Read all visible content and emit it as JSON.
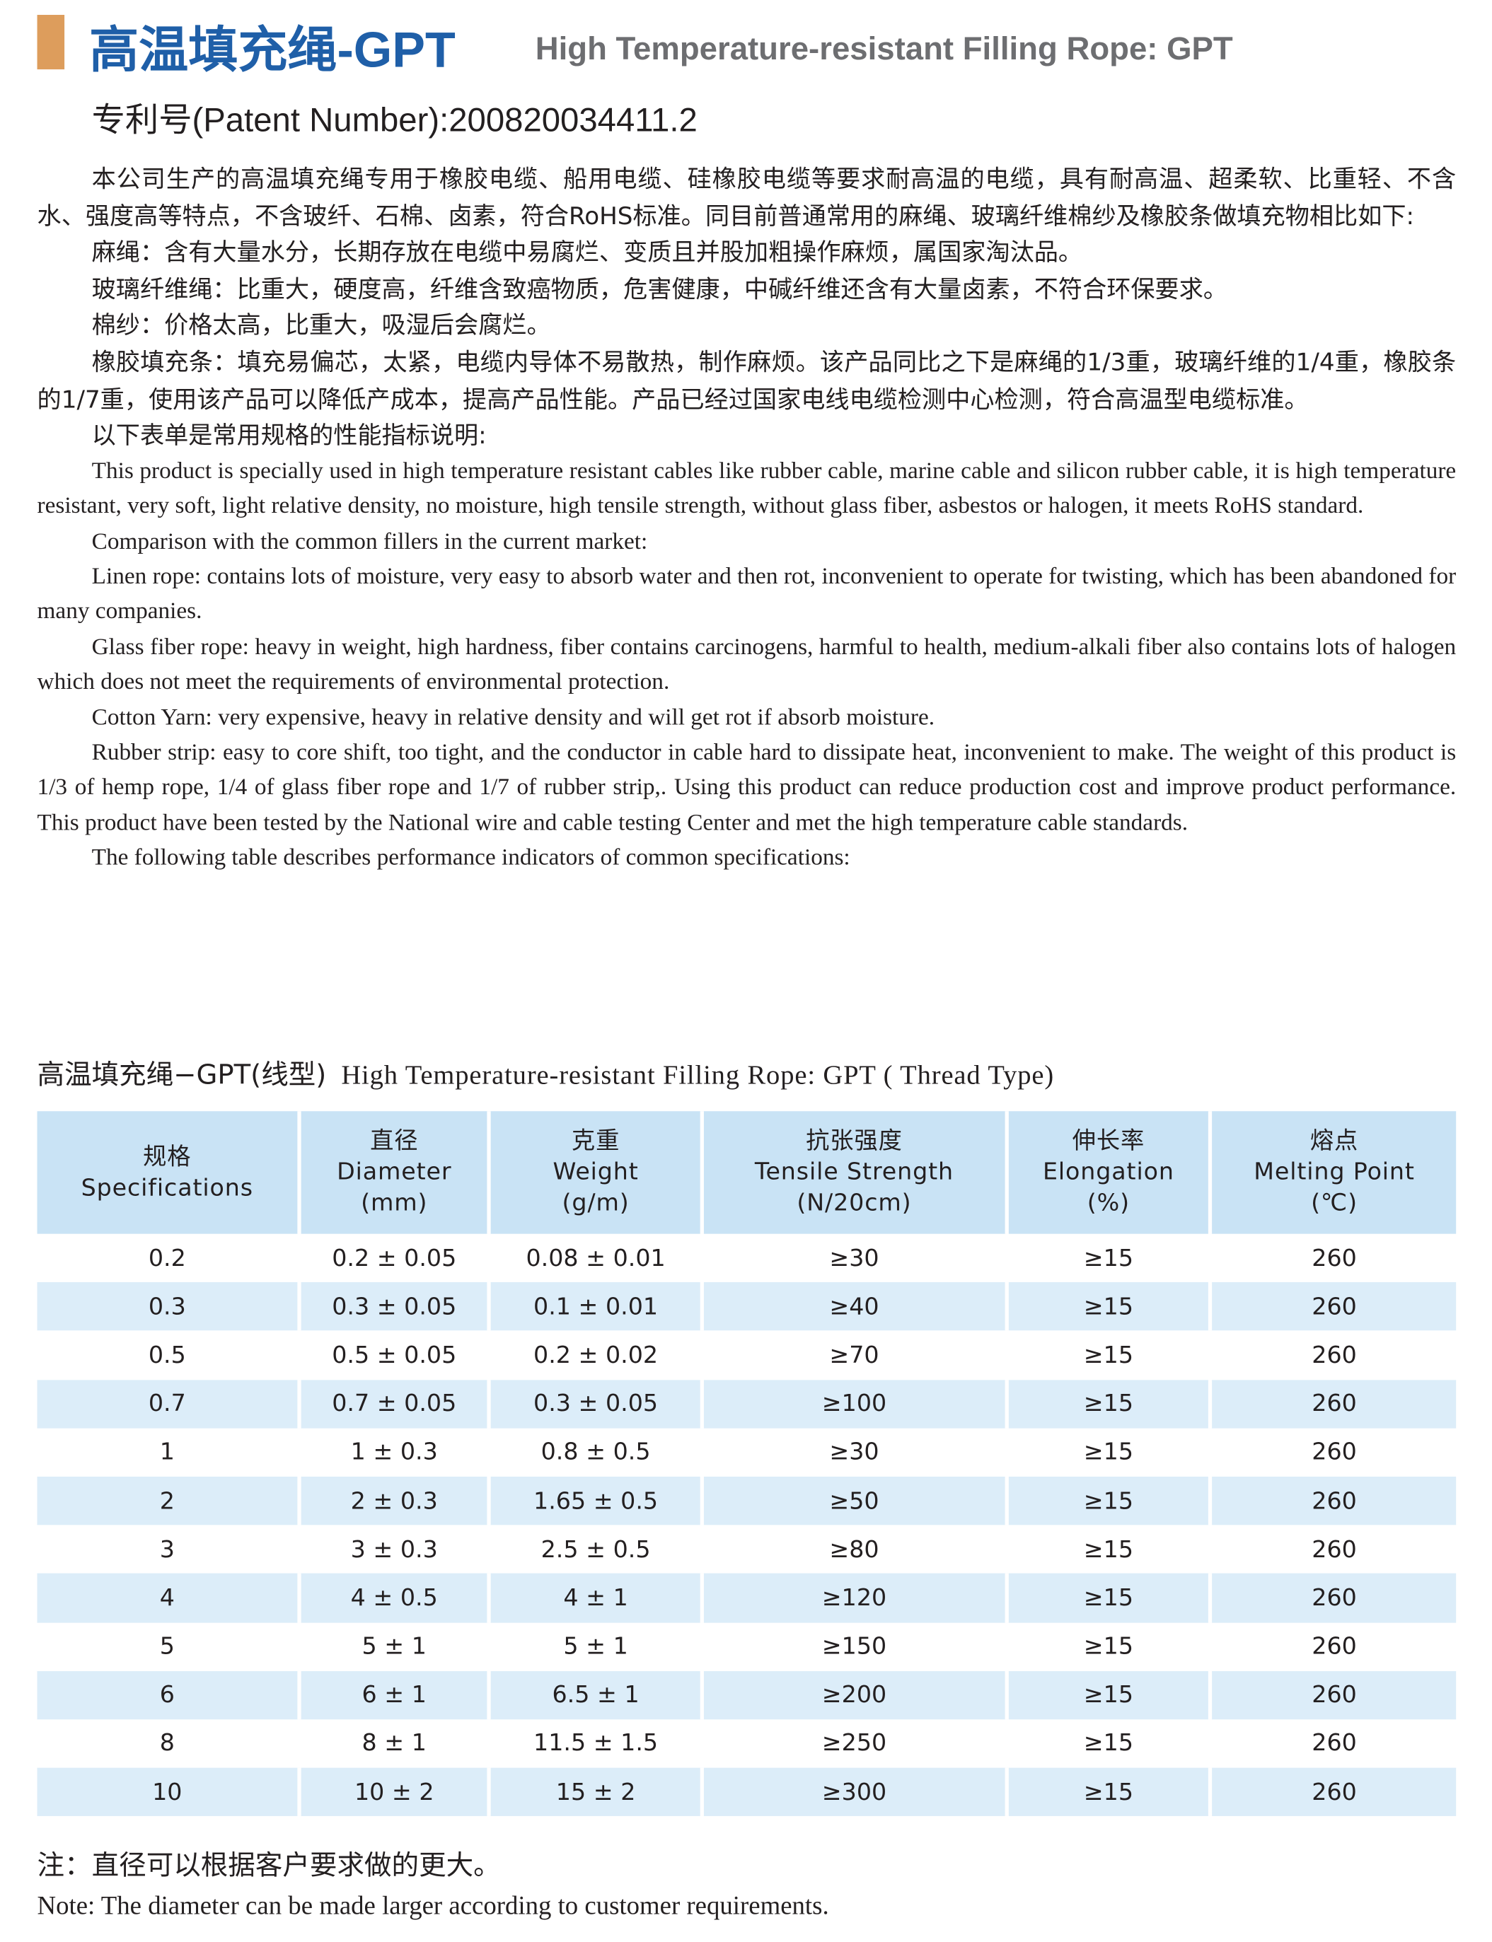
{
  "header": {
    "title_cn": "高温填充绳-GPT",
    "title_en": "High Temperature-resistant Filling Rope: GPT",
    "patent": "专利号(Patent Number):200820034411.2"
  },
  "paragraphs_cn": [
    "本公司生产的高温填充绳专用于橡胶电缆、船用电缆、硅橡胶电缆等要求耐高温的电缆，具有耐高温、超柔软、比重轻、不含水、强度高等特点，不含玻纤、石棉、卤素，符合RoHS标准。同目前普通常用的麻绳、玻璃纤维棉纱及橡胶条做填充物相比如下:",
    "麻绳：含有大量水分，长期存放在电缆中易腐烂、变质且并股加粗操作麻烦，属国家淘汰品。",
    "玻璃纤维绳：比重大，硬度高，纤维含致癌物质，危害健康，中碱纤维还含有大量卤素，不符合环保要求。",
    "棉纱：价格太高，比重大，吸湿后会腐烂。",
    "橡胶填充条：填充易偏芯，太紧，电缆内导体不易散热，制作麻烦。该产品同比之下是麻绳的1/3重，玻璃纤维的1/4重，橡胶条的1/7重，使用该产品可以降低产成本，提高产品性能。产品已经过国家电线电缆检测中心检测，符合高温型电缆标准。",
    "以下表单是常用规格的性能指标说明:"
  ],
  "paragraphs_en": [
    "This product is specially used in high temperature resistant cables like rubber cable, marine cable and silicon rubber cable, it is high temperature resistant, very soft, light relative density, no moisture, high tensile strength, without glass fiber, asbestos or halogen, it meets RoHS standard.",
    "Comparison with the common fillers in the current market:",
    "Linen rope: contains lots of moisture, very easy to absorb water and then rot, inconvenient to operate for twisting, which has been abandoned for many companies.",
    "Glass fiber rope: heavy in weight, high hardness, fiber contains carcinogens, harmful to health, medium-alkali fiber also contains lots of halogen which does not meet the requirements of environmental protection.",
    "Cotton Yarn: very expensive, heavy in relative density and will get rot if absorb moisture.",
    "Rubber strip: easy to core shift, too tight, and the conductor in cable hard to dissipate heat, inconvenient to make. The weight of this product is 1/3 of hemp rope, 1/4 of glass fiber rope and 1/7 of rubber strip,. Using this product can reduce production cost and improve product performance. This product have been tested by the National wire and cable testing Center and met the high temperature cable standards.",
    "The following table describes performance indicators of common specifications:"
  ],
  "table": {
    "caption_cn": "高温填充绳−GPT(线型)",
    "caption_en": "High Temperature-resistant Filling Rope: GPT ( Thread Type)",
    "headers": [
      [
        "规格",
        "Specifications"
      ],
      [
        "直径",
        "Diameter",
        "(mm)"
      ],
      [
        "克重",
        "Weight",
        "(g/m)"
      ],
      [
        "抗张强度",
        "Tensile Strength",
        "(N/20cm)"
      ],
      [
        "伸长率",
        "Elongation",
        "(%)"
      ],
      [
        "熔点",
        "Melting Point",
        "(℃)"
      ]
    ],
    "rows": [
      [
        "0.2",
        "0.2 ± 0.05",
        "0.08 ± 0.01",
        "≥30",
        "≥15",
        "260"
      ],
      [
        "0.3",
        "0.3 ± 0.05",
        "0.1 ± 0.01",
        "≥40",
        "≥15",
        "260"
      ],
      [
        "0.5",
        "0.5 ± 0.05",
        "0.2 ± 0.02",
        "≥70",
        "≥15",
        "260"
      ],
      [
        "0.7",
        "0.7 ± 0.05",
        "0.3 ± 0.05",
        "≥100",
        "≥15",
        "260"
      ],
      [
        "1",
        "1 ± 0.3",
        "0.8 ± 0.5",
        "≥30",
        "≥15",
        "260"
      ],
      [
        "2",
        "2 ± 0.3",
        "1.65 ± 0.5",
        "≥50",
        "≥15",
        "260"
      ],
      [
        "3",
        "3 ± 0.3",
        "2.5 ± 0.5",
        "≥80",
        "≥15",
        "260"
      ],
      [
        "4",
        "4 ± 0.5",
        "4 ± 1",
        "≥120",
        "≥15",
        "260"
      ],
      [
        "5",
        "5 ± 1",
        "5 ± 1",
        "≥150",
        "≥15",
        "260"
      ],
      [
        "6",
        "6 ± 1",
        "6.5 ± 1",
        "≥200",
        "≥15",
        "260"
      ],
      [
        "8",
        "8 ± 1",
        "11.5 ± 1.5",
        "≥250",
        "≥15",
        "260"
      ],
      [
        "10",
        "10 ± 2",
        "15 ± 2",
        "≥300",
        "≥15",
        "260"
      ]
    ]
  },
  "notes": {
    "cn": "注：直径可以根据客户要求做的更大。",
    "en": "Note: The diameter can be made larger according to customer requirements."
  }
}
